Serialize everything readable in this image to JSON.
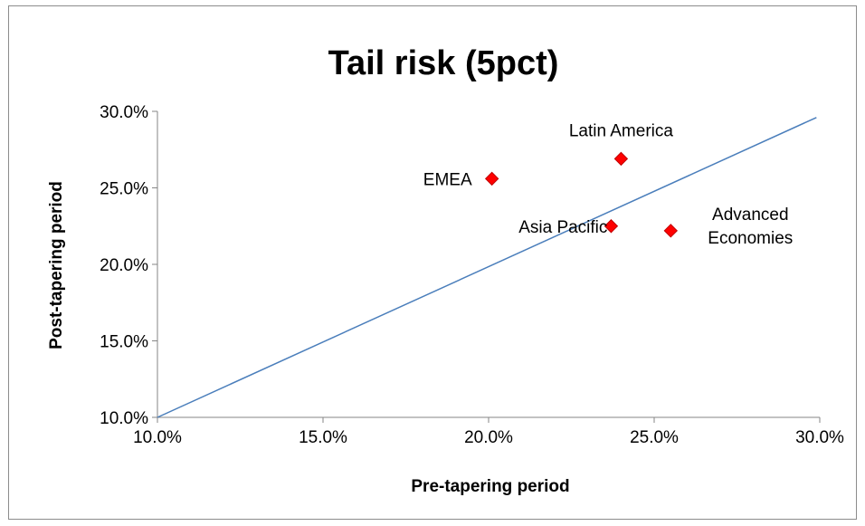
{
  "chart_data": {
    "type": "scatter",
    "title": "Tail risk (5pct)",
    "xlabel": "Pre-tapering period",
    "ylabel": "Post-tapering period",
    "xlim": [
      0.1,
      0.3
    ],
    "ylim": [
      0.1,
      0.3
    ],
    "x_ticks": [
      "10.0%",
      "15.0%",
      "20.0%",
      "25.0%",
      "30.0%"
    ],
    "y_ticks": [
      "10.0%",
      "15.0%",
      "20.0%",
      "25.0%",
      "30.0%"
    ],
    "grid": false,
    "legend": "none",
    "points": [
      {
        "label": "EMEA",
        "x": 0.201,
        "y": 0.256
      },
      {
        "label": "Latin America",
        "x": 0.24,
        "y": 0.269
      },
      {
        "label": "Asia Pacific",
        "x": 0.237,
        "y": 0.225
      },
      {
        "label": "Advanced Economies",
        "label_lines": [
          "Advanced",
          "Economies"
        ],
        "x": 0.255,
        "y": 0.222
      }
    ],
    "reference_line": {
      "x": [
        0.1,
        0.299
      ],
      "y": [
        0.1,
        0.296
      ]
    },
    "colors": {
      "marker_fill": "#ff0000",
      "marker_stroke": "#c00000",
      "line": "#4a7ebb",
      "axis": "#868686"
    }
  }
}
